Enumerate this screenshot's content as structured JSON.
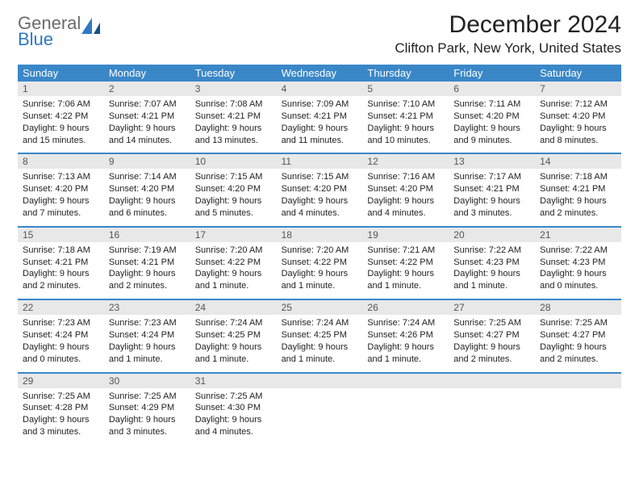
{
  "logo": {
    "line1": "General",
    "line2": "Blue"
  },
  "title": "December 2024",
  "location": "Clifton Park, New York, United States",
  "colors": {
    "header_bg": "#3a87c8",
    "header_text": "#ffffff",
    "daynum_bg": "#e8e8e8",
    "logo_blue": "#2f78c4",
    "logo_gray": "#6b6b6b"
  },
  "weekdays": [
    "Sunday",
    "Monday",
    "Tuesday",
    "Wednesday",
    "Thursday",
    "Friday",
    "Saturday"
  ],
  "weeks": [
    [
      {
        "n": "1",
        "sunrise": "Sunrise: 7:06 AM",
        "sunset": "Sunset: 4:22 PM",
        "day1": "Daylight: 9 hours",
        "day2": "and 15 minutes."
      },
      {
        "n": "2",
        "sunrise": "Sunrise: 7:07 AM",
        "sunset": "Sunset: 4:21 PM",
        "day1": "Daylight: 9 hours",
        "day2": "and 14 minutes."
      },
      {
        "n": "3",
        "sunrise": "Sunrise: 7:08 AM",
        "sunset": "Sunset: 4:21 PM",
        "day1": "Daylight: 9 hours",
        "day2": "and 13 minutes."
      },
      {
        "n": "4",
        "sunrise": "Sunrise: 7:09 AM",
        "sunset": "Sunset: 4:21 PM",
        "day1": "Daylight: 9 hours",
        "day2": "and 11 minutes."
      },
      {
        "n": "5",
        "sunrise": "Sunrise: 7:10 AM",
        "sunset": "Sunset: 4:21 PM",
        "day1": "Daylight: 9 hours",
        "day2": "and 10 minutes."
      },
      {
        "n": "6",
        "sunrise": "Sunrise: 7:11 AM",
        "sunset": "Sunset: 4:20 PM",
        "day1": "Daylight: 9 hours",
        "day2": "and 9 minutes."
      },
      {
        "n": "7",
        "sunrise": "Sunrise: 7:12 AM",
        "sunset": "Sunset: 4:20 PM",
        "day1": "Daylight: 9 hours",
        "day2": "and 8 minutes."
      }
    ],
    [
      {
        "n": "8",
        "sunrise": "Sunrise: 7:13 AM",
        "sunset": "Sunset: 4:20 PM",
        "day1": "Daylight: 9 hours",
        "day2": "and 7 minutes."
      },
      {
        "n": "9",
        "sunrise": "Sunrise: 7:14 AM",
        "sunset": "Sunset: 4:20 PM",
        "day1": "Daylight: 9 hours",
        "day2": "and 6 minutes."
      },
      {
        "n": "10",
        "sunrise": "Sunrise: 7:15 AM",
        "sunset": "Sunset: 4:20 PM",
        "day1": "Daylight: 9 hours",
        "day2": "and 5 minutes."
      },
      {
        "n": "11",
        "sunrise": "Sunrise: 7:15 AM",
        "sunset": "Sunset: 4:20 PM",
        "day1": "Daylight: 9 hours",
        "day2": "and 4 minutes."
      },
      {
        "n": "12",
        "sunrise": "Sunrise: 7:16 AM",
        "sunset": "Sunset: 4:20 PM",
        "day1": "Daylight: 9 hours",
        "day2": "and 4 minutes."
      },
      {
        "n": "13",
        "sunrise": "Sunrise: 7:17 AM",
        "sunset": "Sunset: 4:21 PM",
        "day1": "Daylight: 9 hours",
        "day2": "and 3 minutes."
      },
      {
        "n": "14",
        "sunrise": "Sunrise: 7:18 AM",
        "sunset": "Sunset: 4:21 PM",
        "day1": "Daylight: 9 hours",
        "day2": "and 2 minutes."
      }
    ],
    [
      {
        "n": "15",
        "sunrise": "Sunrise: 7:18 AM",
        "sunset": "Sunset: 4:21 PM",
        "day1": "Daylight: 9 hours",
        "day2": "and 2 minutes."
      },
      {
        "n": "16",
        "sunrise": "Sunrise: 7:19 AM",
        "sunset": "Sunset: 4:21 PM",
        "day1": "Daylight: 9 hours",
        "day2": "and 2 minutes."
      },
      {
        "n": "17",
        "sunrise": "Sunrise: 7:20 AM",
        "sunset": "Sunset: 4:22 PM",
        "day1": "Daylight: 9 hours",
        "day2": "and 1 minute."
      },
      {
        "n": "18",
        "sunrise": "Sunrise: 7:20 AM",
        "sunset": "Sunset: 4:22 PM",
        "day1": "Daylight: 9 hours",
        "day2": "and 1 minute."
      },
      {
        "n": "19",
        "sunrise": "Sunrise: 7:21 AM",
        "sunset": "Sunset: 4:22 PM",
        "day1": "Daylight: 9 hours",
        "day2": "and 1 minute."
      },
      {
        "n": "20",
        "sunrise": "Sunrise: 7:22 AM",
        "sunset": "Sunset: 4:23 PM",
        "day1": "Daylight: 9 hours",
        "day2": "and 1 minute."
      },
      {
        "n": "21",
        "sunrise": "Sunrise: 7:22 AM",
        "sunset": "Sunset: 4:23 PM",
        "day1": "Daylight: 9 hours",
        "day2": "and 0 minutes."
      }
    ],
    [
      {
        "n": "22",
        "sunrise": "Sunrise: 7:23 AM",
        "sunset": "Sunset: 4:24 PM",
        "day1": "Daylight: 9 hours",
        "day2": "and 0 minutes."
      },
      {
        "n": "23",
        "sunrise": "Sunrise: 7:23 AM",
        "sunset": "Sunset: 4:24 PM",
        "day1": "Daylight: 9 hours",
        "day2": "and 1 minute."
      },
      {
        "n": "24",
        "sunrise": "Sunrise: 7:24 AM",
        "sunset": "Sunset: 4:25 PM",
        "day1": "Daylight: 9 hours",
        "day2": "and 1 minute."
      },
      {
        "n": "25",
        "sunrise": "Sunrise: 7:24 AM",
        "sunset": "Sunset: 4:25 PM",
        "day1": "Daylight: 9 hours",
        "day2": "and 1 minute."
      },
      {
        "n": "26",
        "sunrise": "Sunrise: 7:24 AM",
        "sunset": "Sunset: 4:26 PM",
        "day1": "Daylight: 9 hours",
        "day2": "and 1 minute."
      },
      {
        "n": "27",
        "sunrise": "Sunrise: 7:25 AM",
        "sunset": "Sunset: 4:27 PM",
        "day1": "Daylight: 9 hours",
        "day2": "and 2 minutes."
      },
      {
        "n": "28",
        "sunrise": "Sunrise: 7:25 AM",
        "sunset": "Sunset: 4:27 PM",
        "day1": "Daylight: 9 hours",
        "day2": "and 2 minutes."
      }
    ],
    [
      {
        "n": "29",
        "sunrise": "Sunrise: 7:25 AM",
        "sunset": "Sunset: 4:28 PM",
        "day1": "Daylight: 9 hours",
        "day2": "and 3 minutes."
      },
      {
        "n": "30",
        "sunrise": "Sunrise: 7:25 AM",
        "sunset": "Sunset: 4:29 PM",
        "day1": "Daylight: 9 hours",
        "day2": "and 3 minutes."
      },
      {
        "n": "31",
        "sunrise": "Sunrise: 7:25 AM",
        "sunset": "Sunset: 4:30 PM",
        "day1": "Daylight: 9 hours",
        "day2": "and 4 minutes."
      },
      null,
      null,
      null,
      null
    ]
  ]
}
